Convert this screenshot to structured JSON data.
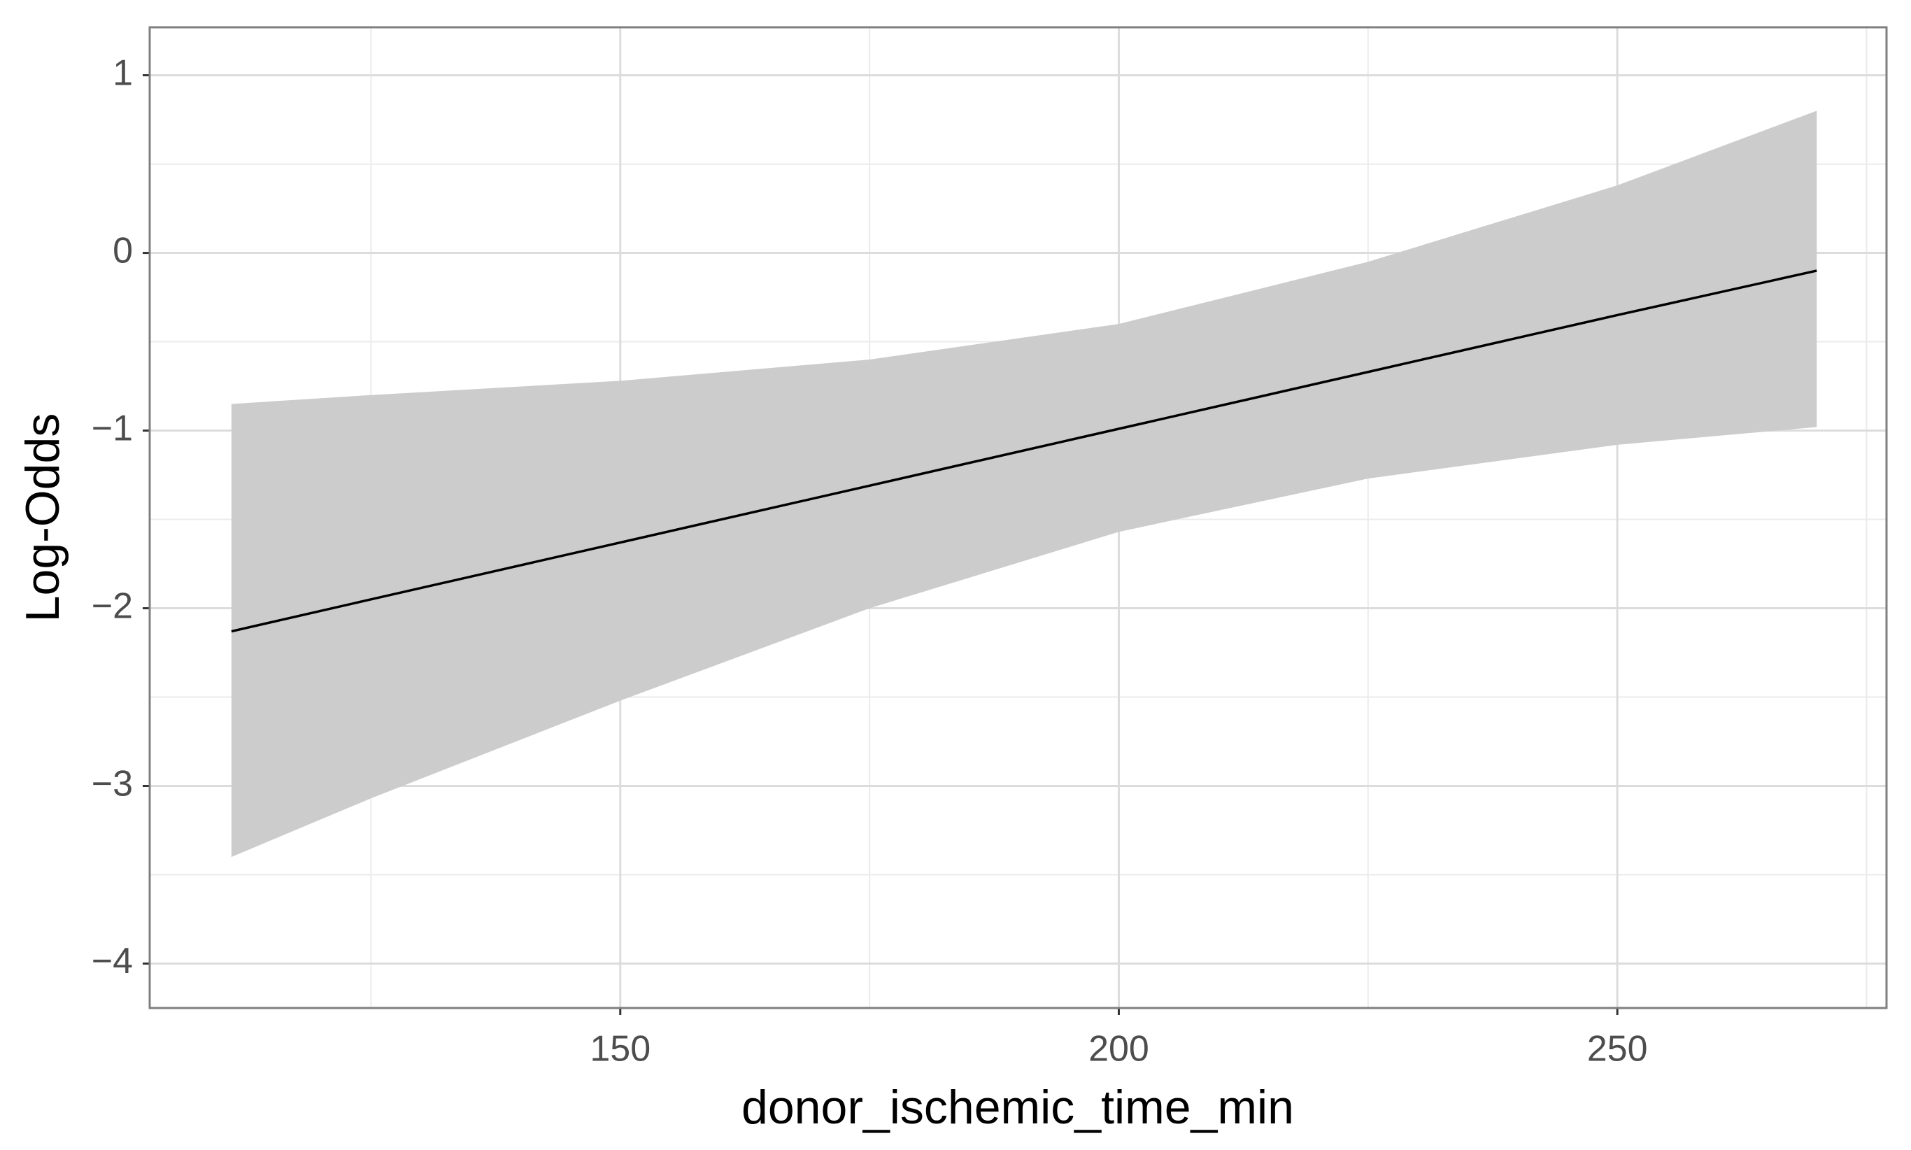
{
  "chart_data": {
    "type": "line_band",
    "x_label": "donor_ischemic_time_min",
    "y_label": "Log-Odds",
    "x": [
      111,
      125,
      150,
      175,
      200,
      225,
      250,
      270
    ],
    "series": [
      {
        "color": "#000000",
        "values": [
          -2.13,
          -1.95,
          -1.63,
          -1.31,
          -0.99,
          -0.67,
          -0.35,
          -0.1
        ]
      }
    ],
    "band": {
      "color": "#cccccc",
      "upper": [
        -0.85,
        -0.8,
        -0.72,
        -0.6,
        -0.4,
        -0.05,
        0.38,
        0.8
      ],
      "lower": [
        -3.4,
        -3.07,
        -2.52,
        -2.0,
        -1.57,
        -1.27,
        -1.08,
        -0.98
      ]
    },
    "xlim": [
      102.8,
      277
    ],
    "ylim": [
      -4.25,
      1.27
    ],
    "xticks": [
      150,
      200,
      250
    ],
    "yticks": [
      {
        "value": -4,
        "label": "−4"
      },
      {
        "value": -3,
        "label": "−3"
      },
      {
        "value": -2,
        "label": "−2"
      },
      {
        "value": -1,
        "label": "−1"
      },
      0,
      1
    ],
    "minor_xticks": [
      125,
      175,
      225,
      275
    ],
    "minor_yticks": [
      -3.5,
      -2.5,
      -1.5,
      -0.5,
      0.5
    ],
    "grid": true
  }
}
